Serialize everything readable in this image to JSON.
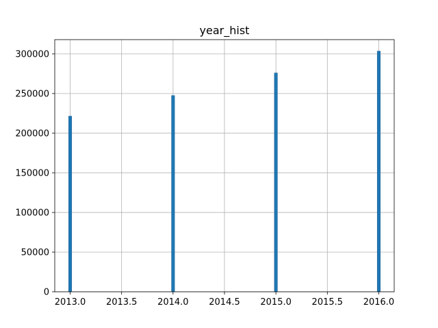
{
  "chart_data": {
    "type": "bar",
    "title": "year_hist",
    "xlabel": "",
    "ylabel": "",
    "x": [
      2013,
      2014,
      2015,
      2016
    ],
    "values": [
      221500,
      247500,
      276000,
      303500
    ],
    "xlim": [
      2012.85,
      2016.15
    ],
    "ylim": [
      0,
      318000
    ],
    "xticks": [
      2013.0,
      2013.5,
      2014.0,
      2014.5,
      2015.0,
      2015.5,
      2016.0
    ],
    "xtick_labels": [
      "2013.0",
      "2013.5",
      "2014.0",
      "2014.5",
      "2015.0",
      "2015.5",
      "2016.0"
    ],
    "yticks": [
      0,
      50000,
      100000,
      150000,
      200000,
      250000,
      300000
    ],
    "ytick_labels": [
      "0",
      "50000",
      "100000",
      "150000",
      "200000",
      "250000",
      "300000"
    ],
    "bin_width": 0.03,
    "grid": true,
    "bar_color": "#1f77b4"
  }
}
